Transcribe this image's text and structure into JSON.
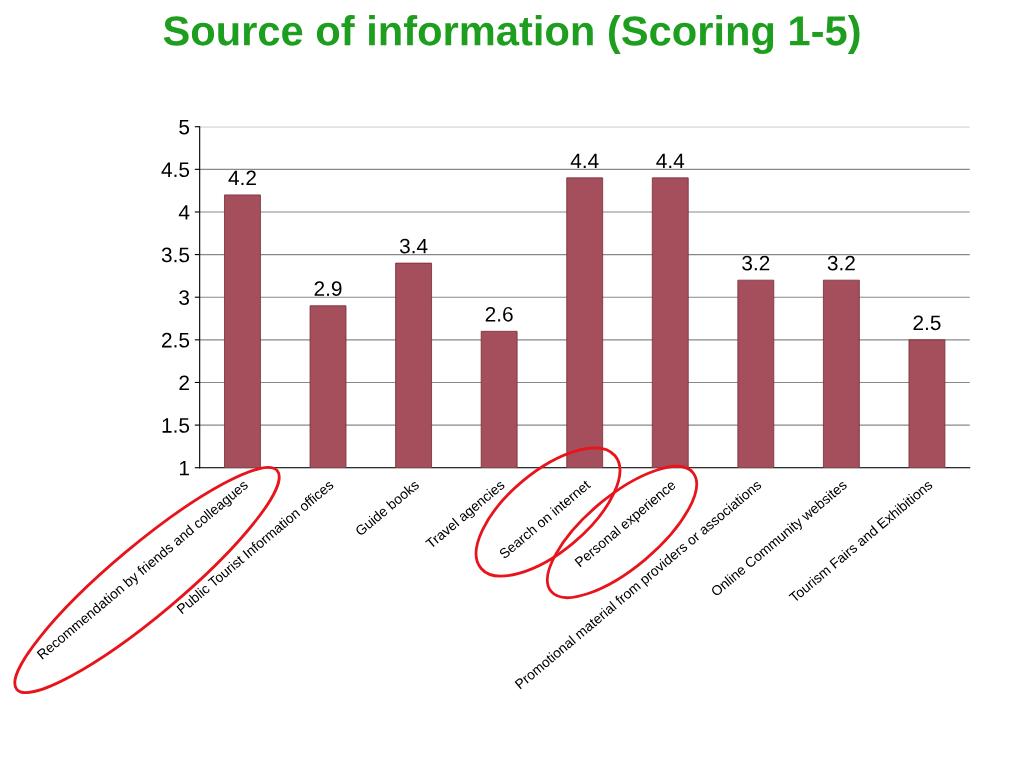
{
  "chart_data": {
    "type": "bar",
    "title": "Source of information (Scoring 1-5)",
    "categories": [
      "Recommendation by friends and colleagues",
      "Public Tourist Information offices",
      "Guide books",
      "Travel agencies",
      "Search on internet",
      "Personal experience",
      "Promotional material from providers or associations",
      "Online Community websites",
      "Tourism Fairs and Exhibitions"
    ],
    "values": [
      4.2,
      2.9,
      3.4,
      2.6,
      4.4,
      4.4,
      3.2,
      3.2,
      2.5
    ],
    "color": "#a44f5b",
    "ylim": [
      1,
      5
    ],
    "yticks": [
      1,
      1.5,
      2,
      2.5,
      3,
      3.5,
      4,
      4.5,
      5
    ],
    "grid": "y",
    "data_labels": true
  }
}
